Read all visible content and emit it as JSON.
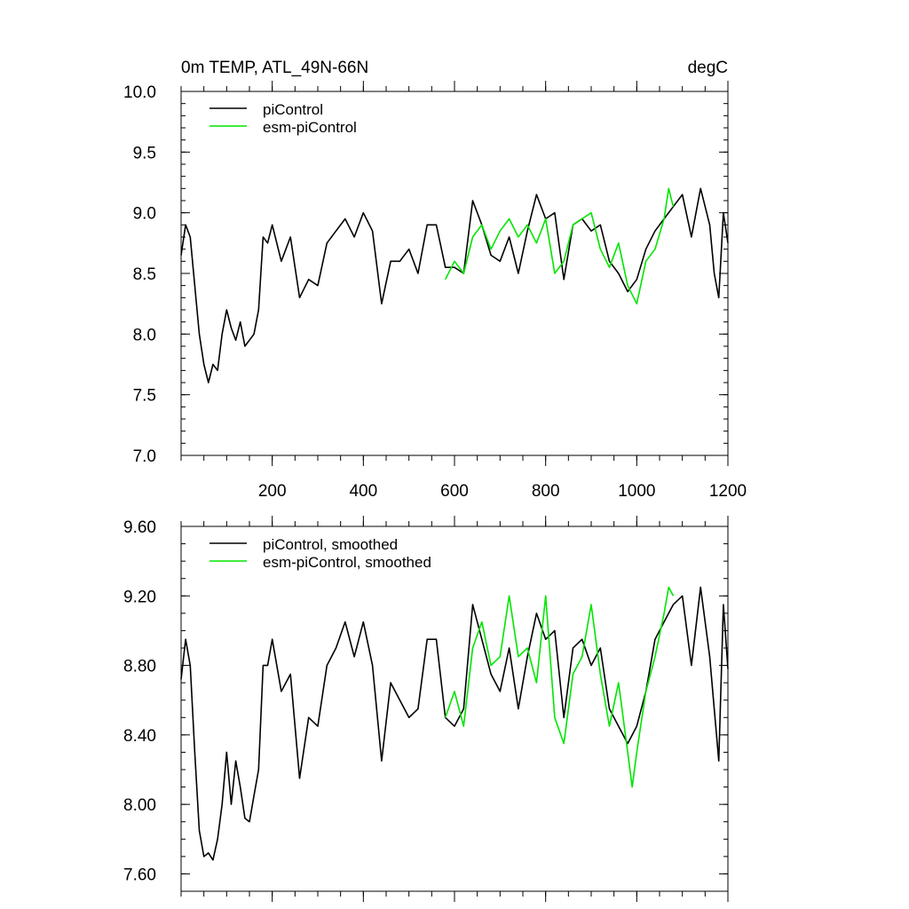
{
  "chart_data": [
    {
      "type": "line",
      "title": "0m TEMP, ATL_49N-66N",
      "units_label": "degC",
      "xlabel": "",
      "ylabel": "",
      "xlim": [
        0,
        1200
      ],
      "ylim": [
        7.0,
        10.0
      ],
      "x_ticks": [
        200,
        400,
        600,
        800,
        1000,
        1200
      ],
      "x_tick_labels": [
        "200",
        "400",
        "600",
        "800",
        "1000",
        "1200"
      ],
      "y_ticks": [
        7.0,
        7.5,
        8.0,
        8.5,
        9.0,
        9.5,
        10.0
      ],
      "y_tick_labels": [
        "7.0",
        "7.5",
        "8.0",
        "8.5",
        "9.0",
        "9.5",
        "10.0"
      ],
      "legend_position": "top-left",
      "series": [
        {
          "name": "piControl",
          "color": "#000000",
          "x": [
            0,
            10,
            20,
            30,
            40,
            50,
            60,
            70,
            80,
            90,
            100,
            110,
            120,
            130,
            140,
            150,
            160,
            170,
            180,
            190,
            200,
            220,
            240,
            260,
            280,
            300,
            320,
            340,
            360,
            380,
            400,
            420,
            440,
            460,
            480,
            500,
            520,
            540,
            560,
            580,
            600,
            620,
            640,
            660,
            680,
            700,
            720,
            740,
            760,
            780,
            800,
            820,
            840,
            860,
            880,
            900,
            920,
            940,
            960,
            980,
            1000,
            1020,
            1040,
            1060,
            1080,
            1100,
            1120,
            1140,
            1160,
            1170,
            1180,
            1190,
            1200
          ],
          "values": [
            8.65,
            8.9,
            8.8,
            8.4,
            8.0,
            7.75,
            7.6,
            7.75,
            7.7,
            8.0,
            8.2,
            8.05,
            7.95,
            8.1,
            7.9,
            7.95,
            8.0,
            8.2,
            8.8,
            8.75,
            8.9,
            8.6,
            8.8,
            8.3,
            8.45,
            8.4,
            8.75,
            8.85,
            8.95,
            8.8,
            9.0,
            8.85,
            8.25,
            8.6,
            8.6,
            8.7,
            8.5,
            8.9,
            8.9,
            8.55,
            8.55,
            8.5,
            9.1,
            8.9,
            8.65,
            8.6,
            8.8,
            8.5,
            8.85,
            9.15,
            8.95,
            9.0,
            8.45,
            8.9,
            8.95,
            8.85,
            8.9,
            8.6,
            8.5,
            8.35,
            8.45,
            8.7,
            8.85,
            8.95,
            9.05,
            9.15,
            8.8,
            9.2,
            8.9,
            8.5,
            8.3,
            9.0,
            8.75
          ]
        },
        {
          "name": "esm-piControl",
          "color": "#00e600",
          "x": [
            580,
            600,
            620,
            640,
            660,
            680,
            700,
            720,
            740,
            760,
            780,
            800,
            820,
            840,
            860,
            880,
            900,
            920,
            940,
            960,
            980,
            1000,
            1020,
            1040,
            1060,
            1070,
            1080
          ],
          "values": [
            8.45,
            8.6,
            8.5,
            8.8,
            8.9,
            8.7,
            8.85,
            8.95,
            8.8,
            8.9,
            8.75,
            8.95,
            8.5,
            8.6,
            8.9,
            8.95,
            9.0,
            8.7,
            8.55,
            8.75,
            8.4,
            8.25,
            8.6,
            8.7,
            8.95,
            9.2,
            9.05
          ]
        }
      ]
    },
    {
      "type": "line",
      "title": "",
      "xlabel": "",
      "ylabel": "",
      "xlim": [
        0,
        1200
      ],
      "ylim": [
        7.5,
        9.6
      ],
      "y_ticks": [
        7.6,
        8.0,
        8.4,
        8.8,
        9.2,
        9.6
      ],
      "y_tick_labels": [
        "7.60",
        "8.00",
        "8.40",
        "8.80",
        "9.20",
        "9.60"
      ],
      "legend_position": "top-left",
      "series": [
        {
          "name": "piControl, smoothed",
          "color": "#000000",
          "x": [
            0,
            10,
            20,
            30,
            40,
            50,
            60,
            70,
            80,
            90,
            100,
            110,
            120,
            130,
            140,
            150,
            160,
            170,
            180,
            190,
            200,
            220,
            240,
            260,
            280,
            300,
            320,
            340,
            360,
            380,
            400,
            420,
            440,
            460,
            480,
            500,
            520,
            540,
            560,
            580,
            600,
            620,
            640,
            660,
            680,
            700,
            720,
            740,
            760,
            780,
            800,
            820,
            840,
            860,
            880,
            900,
            920,
            940,
            960,
            980,
            1000,
            1020,
            1040,
            1060,
            1080,
            1100,
            1120,
            1140,
            1160,
            1170,
            1180,
            1190,
            1200
          ],
          "values": [
            8.72,
            8.95,
            8.8,
            8.3,
            7.85,
            7.7,
            7.72,
            7.68,
            7.8,
            8.0,
            8.3,
            8.0,
            8.25,
            8.1,
            7.92,
            7.9,
            8.05,
            8.2,
            8.8,
            8.8,
            8.95,
            8.65,
            8.75,
            8.15,
            8.5,
            8.45,
            8.8,
            8.9,
            9.05,
            8.85,
            9.05,
            8.8,
            8.25,
            8.7,
            8.6,
            8.5,
            8.55,
            8.95,
            8.95,
            8.5,
            8.45,
            8.55,
            9.15,
            8.95,
            8.75,
            8.65,
            8.9,
            8.55,
            8.85,
            9.1,
            8.95,
            9.0,
            8.5,
            8.9,
            8.95,
            8.8,
            8.9,
            8.55,
            8.45,
            8.35,
            8.45,
            8.65,
            8.95,
            9.05,
            9.15,
            9.2,
            8.8,
            9.25,
            8.85,
            8.55,
            8.25,
            9.15,
            8.78
          ]
        },
        {
          "name": "esm-piControl, smoothed",
          "color": "#00e600",
          "x": [
            580,
            600,
            620,
            640,
            660,
            680,
            700,
            720,
            740,
            760,
            780,
            800,
            820,
            840,
            860,
            880,
            900,
            920,
            940,
            960,
            980,
            990,
            1000,
            1020,
            1040,
            1060,
            1070,
            1080
          ],
          "values": [
            8.5,
            8.65,
            8.45,
            8.9,
            9.05,
            8.8,
            8.85,
            9.2,
            8.85,
            8.9,
            8.7,
            9.2,
            8.5,
            8.35,
            8.75,
            8.85,
            9.15,
            8.75,
            8.45,
            8.7,
            8.3,
            8.1,
            8.3,
            8.65,
            8.85,
            9.1,
            9.25,
            9.2
          ]
        }
      ]
    }
  ]
}
